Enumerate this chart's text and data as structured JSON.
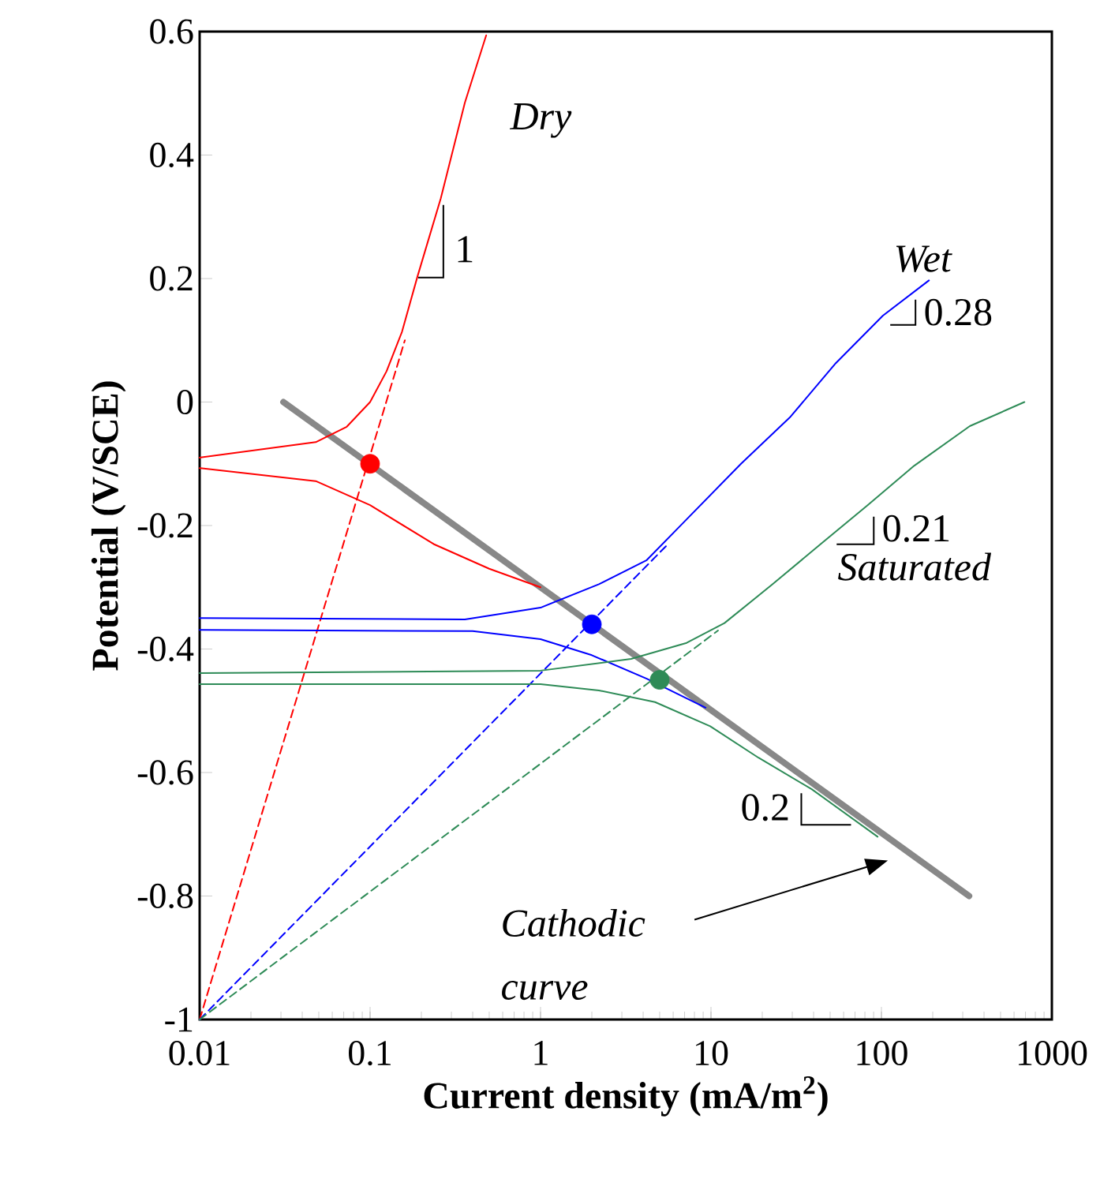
{
  "chart_data": {
    "type": "line",
    "xlabel": "Current density (mA/m$^{2}$)",
    "ylabel": "Potential (V/SCE)",
    "log": "x",
    "xlim": [
      0.01,
      1000
    ],
    "ylim": [
      -1,
      0.6
    ],
    "xticks": [
      0.01,
      0.1,
      1,
      10,
      100,
      1000
    ],
    "yticks": [
      -1,
      -0.8,
      -0.6,
      -0.4,
      -0.2,
      0,
      0.2,
      0.4,
      0.6
    ],
    "series": [
      {
        "color": "#888888",
        "x": [
          0.031,
          327
        ],
        "values": [
          0.0,
          -0.8
        ]
      },
      {
        "name": "Dry",
        "color": "#ff0000",
        "x": [
          0.01,
          0.048,
          0.073,
          0.1,
          0.125,
          0.154,
          0.19,
          0.26,
          0.36,
          0.48
        ],
        "values": [
          -0.09,
          -0.065,
          -0.04,
          0.0,
          0.05,
          0.114,
          0.204,
          0.33,
          0.485,
          0.594
        ]
      },
      {
        "color": "#ff0000",
        "x": [
          0.01,
          0.048,
          0.1,
          0.236,
          0.5,
          1
        ],
        "values": [
          -0.107,
          -0.128,
          -0.167,
          -0.23,
          -0.27,
          -0.3
        ]
      },
      {
        "color": "#ff0000",
        "line_style": "dashed",
        "x": [
          0.01,
          0.16
        ],
        "values": [
          -1,
          0.1
        ]
      },
      {
        "name": "Wet",
        "color": "#0000ff",
        "x": [
          0.01,
          0.36,
          1,
          2.2,
          4.2,
          7.2,
          15,
          29,
          54,
          102,
          190
        ],
        "values": [
          -0.35,
          -0.352,
          -0.333,
          -0.295,
          -0.256,
          -0.19,
          -0.1,
          -0.025,
          0.063,
          0.14,
          0.197
        ]
      },
      {
        "color": "#0000ff",
        "x": [
          0.01,
          0.4,
          1,
          2,
          4.2,
          9.3
        ],
        "values": [
          -0.369,
          -0.371,
          -0.384,
          -0.41,
          -0.448,
          -0.495
        ]
      },
      {
        "color": "#0000ff",
        "line_style": "dashed",
        "x": [
          0.01,
          5.6
        ],
        "values": [
          -1,
          -0.23
        ]
      },
      {
        "name": "Saturated",
        "color": "#2e8b57",
        "x": [
          0.01,
          1,
          3.4,
          7.2,
          12,
          23,
          44,
          83,
          156,
          330,
          690
        ],
        "values": [
          -0.439,
          -0.435,
          -0.416,
          -0.39,
          -0.358,
          -0.295,
          -0.23,
          -0.167,
          -0.103,
          -0.039,
          0.0
        ]
      },
      {
        "color": "#2e8b57",
        "x": [
          0.01,
          1,
          2.2,
          4.7,
          9.9,
          19,
          39,
          95
        ],
        "values": [
          -0.457,
          -0.457,
          -0.467,
          -0.486,
          -0.525,
          -0.576,
          -0.627,
          -0.704
        ]
      },
      {
        "color": "#2e8b57",
        "line_style": "dashed",
        "x": [
          0.01,
          11
        ],
        "values": [
          -1,
          -0.37
        ]
      },
      {
        "type": "scatter",
        "color": "#ff0000",
        "x": [
          0.1
        ],
        "values": [
          -0.1
        ]
      },
      {
        "type": "scatter",
        "color": "#0000ff",
        "x": [
          2
        ],
        "values": [
          -0.36
        ]
      },
      {
        "type": "scatter",
        "color": "#2e8b57",
        "x": [
          5
        ],
        "values": [
          -0.45
        ]
      }
    ],
    "annotations": [
      "1",
      "0.28",
      "0.21",
      "0.2",
      "Cathodic curve"
    ]
  }
}
